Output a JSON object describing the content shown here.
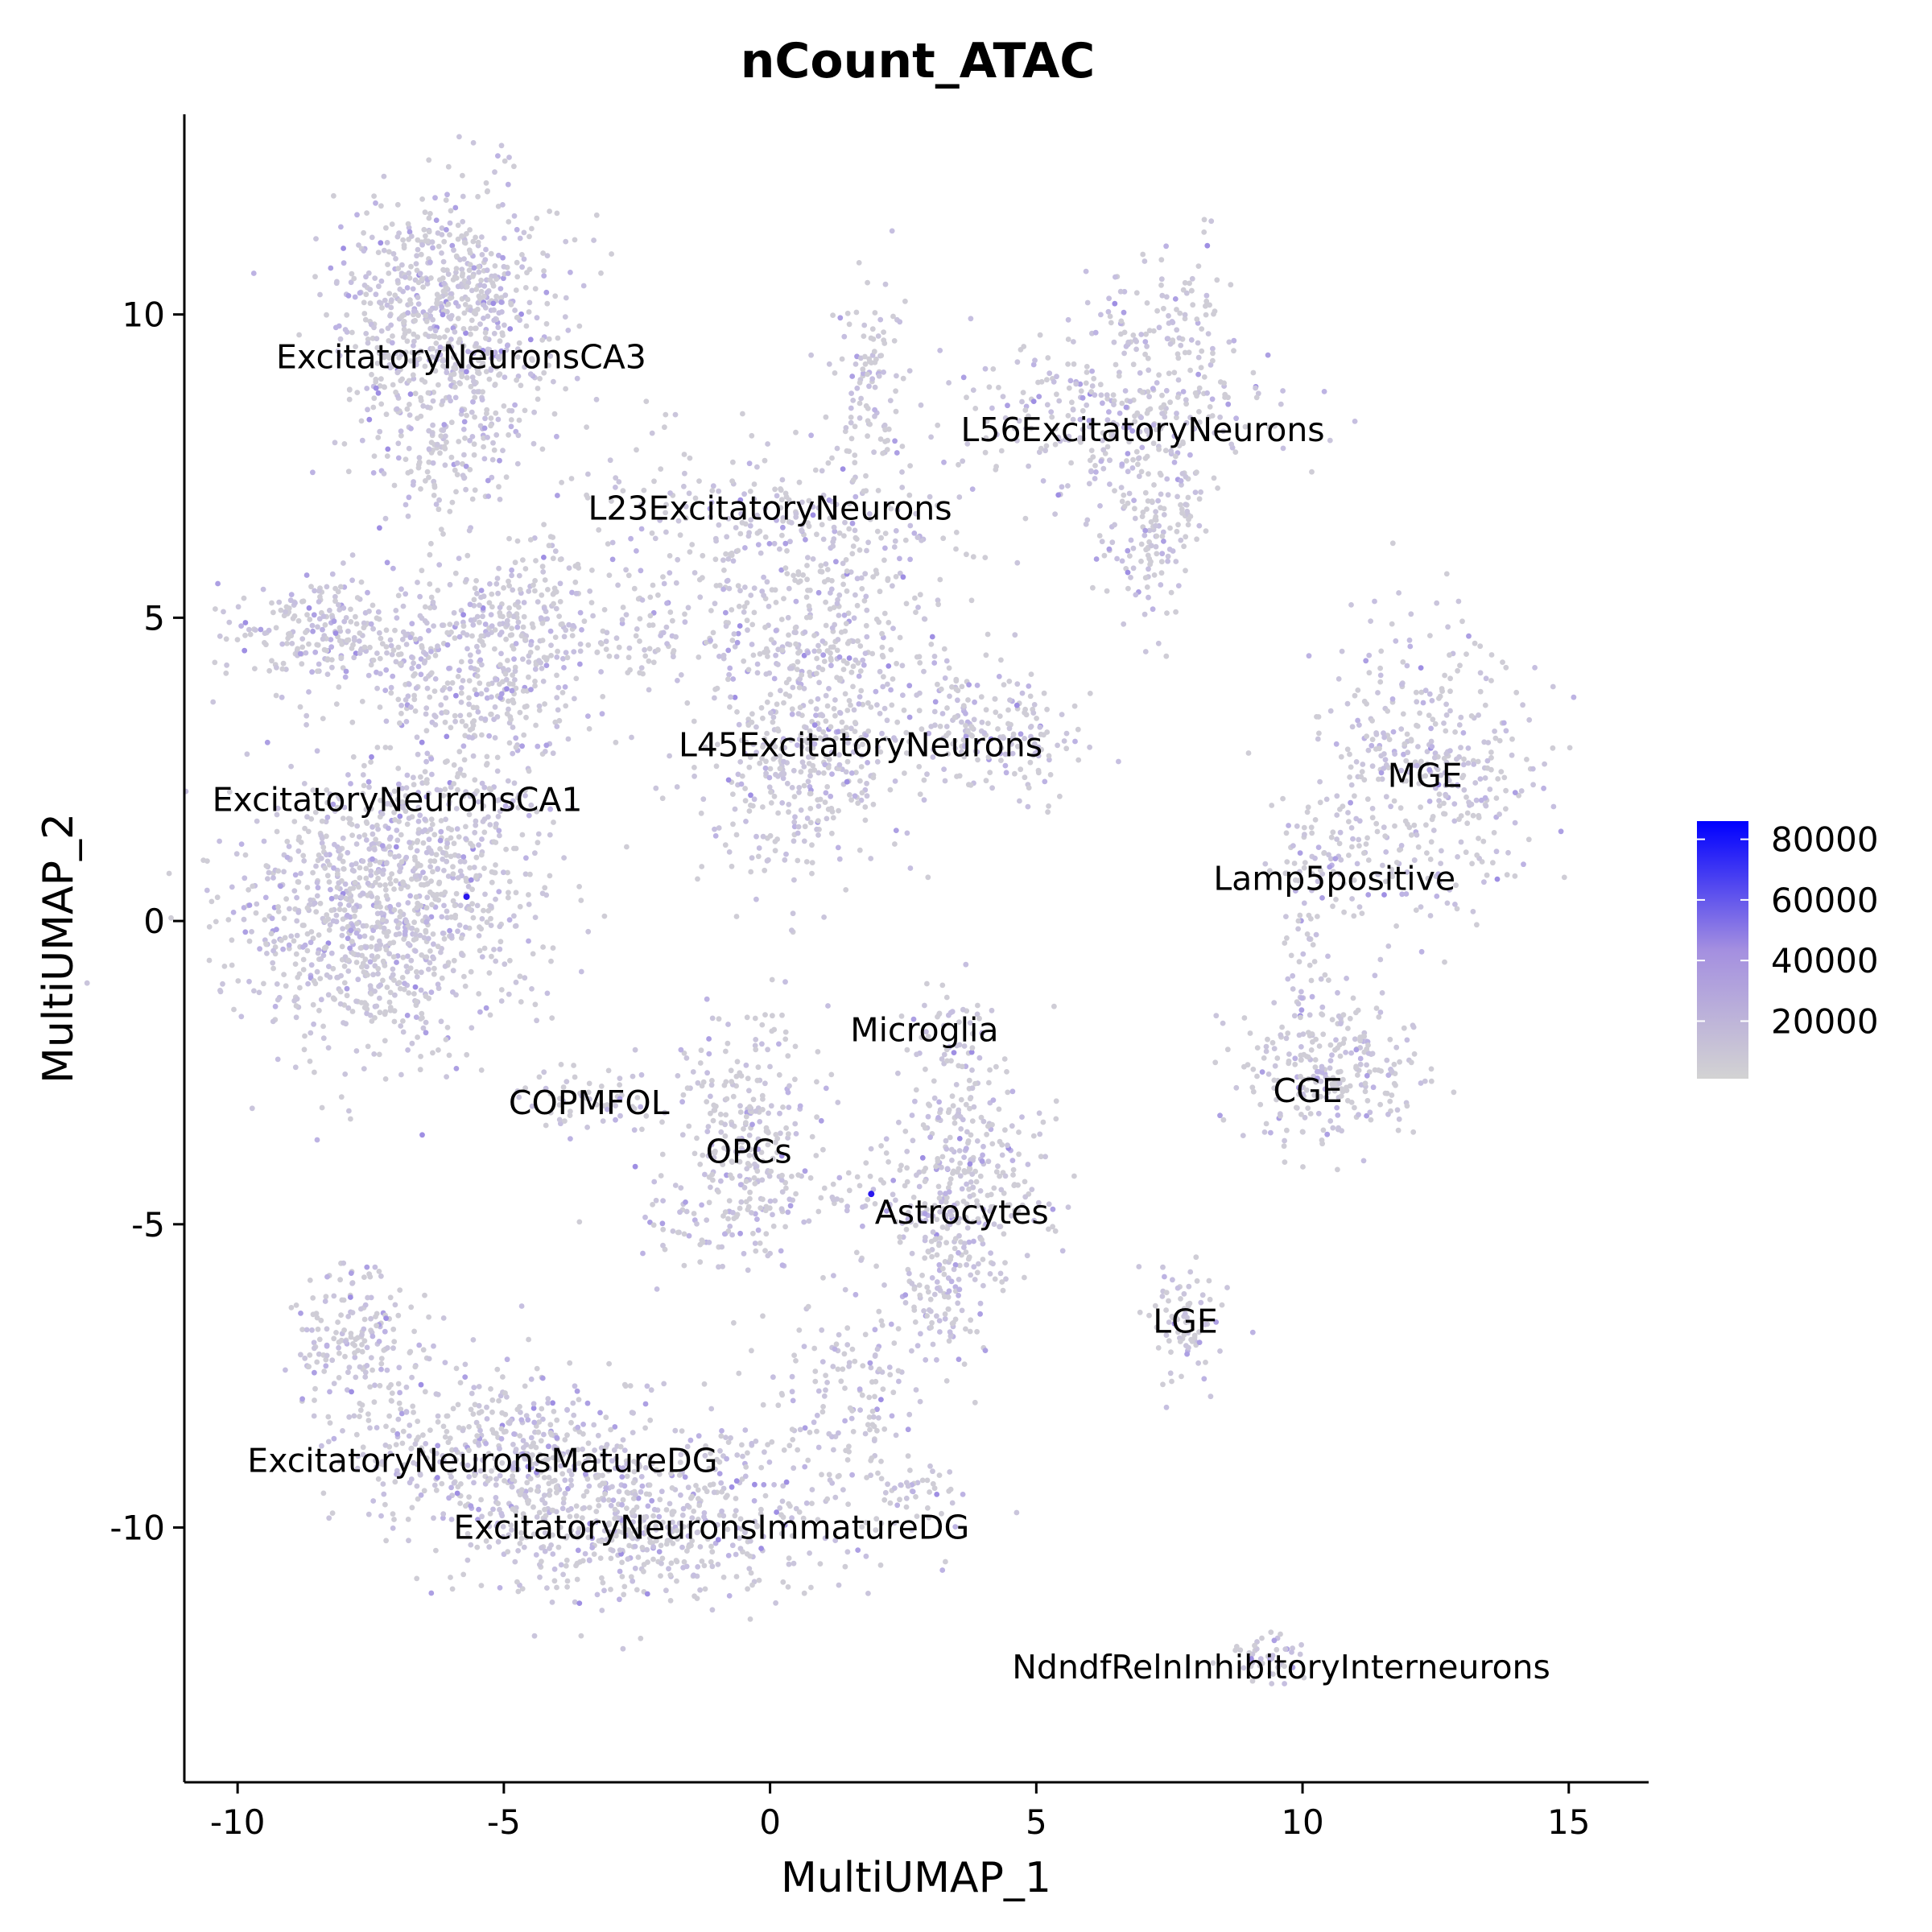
{
  "chart_data": {
    "type": "scatter",
    "title": "nCount_ATAC",
    "xlabel": "MultiUMAP_1",
    "ylabel": "MultiUMAP_2",
    "xlim": [
      -11,
      16.5
    ],
    "ylim": [
      -14.2,
      13.3
    ],
    "x_ticks": [
      -10,
      -5,
      0,
      5,
      10,
      15
    ],
    "x_tick_labels": [
      "-10",
      "-5",
      "0",
      "5",
      "10",
      "15"
    ],
    "y_ticks": [
      -10,
      -5,
      0,
      5,
      10
    ],
    "y_tick_labels": [
      "-10",
      "-5",
      "0",
      "5",
      "10"
    ],
    "grid": false,
    "colors": {
      "low": "#d3d3d3",
      "high": "#0000ff"
    },
    "legend": {
      "position": "right",
      "min": 1000,
      "max": 86000,
      "ticks": [
        20000,
        40000,
        60000,
        80000
      ],
      "tick_labels": [
        "20000",
        "40000",
        "60000",
        "80000"
      ]
    },
    "clusters": [
      {
        "label": "ExcitatoryNeuronsCA3",
        "x": -5.8,
        "y": 9.3
      },
      {
        "label": "L56ExcitatoryNeurons",
        "x": 7.0,
        "y": 8.1
      },
      {
        "label": "L23ExcitatoryNeurons",
        "x": 0.0,
        "y": 6.8
      },
      {
        "label": "L45ExcitatoryNeurons",
        "x": 1.7,
        "y": 2.9
      },
      {
        "label": "ExcitatoryNeuronsCA1",
        "x": -7.0,
        "y": 2.0
      },
      {
        "label": "MGE",
        "x": 12.3,
        "y": 2.4
      },
      {
        "label": "Lamp5positive",
        "x": 10.6,
        "y": 0.7
      },
      {
        "label": "Microglia",
        "x": 2.9,
        "y": -1.8
      },
      {
        "label": "CGE",
        "x": 10.1,
        "y": -2.8
      },
      {
        "label": "COPMFOL",
        "x": -3.4,
        "y": -3.0
      },
      {
        "label": "OPCs",
        "x": -0.4,
        "y": -3.8
      },
      {
        "label": "Astrocytes",
        "x": 3.6,
        "y": -4.8
      },
      {
        "label": "LGE",
        "x": 7.8,
        "y": -6.6
      },
      {
        "label": "ExcitatoryNeuronsMatureDG",
        "x": -5.4,
        "y": -8.9
      },
      {
        "label": "ExcitatoryNeuronsImmatureDG",
        "x": -1.1,
        "y": -10.0
      },
      {
        "label": "NdndfRelnInhibitoryInterneurons",
        "x": 9.6,
        "y": -12.3
      }
    ]
  }
}
